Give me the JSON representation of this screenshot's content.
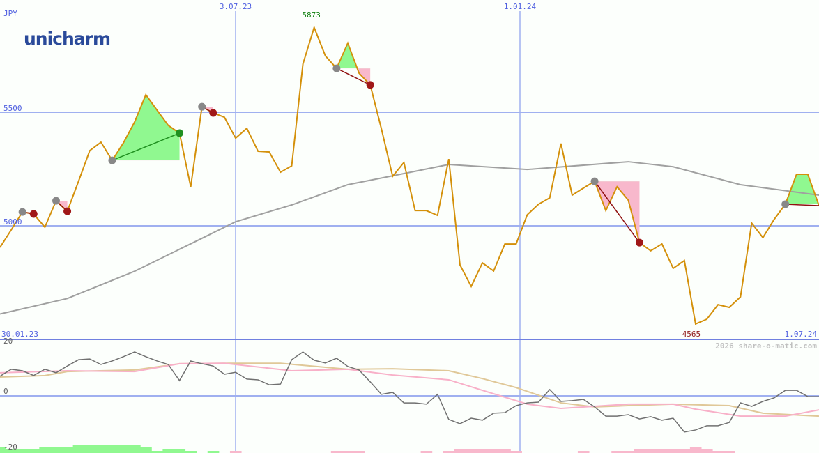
{
  "chart_data": {
    "type": "line",
    "currency": "JPY",
    "logo": "unicharm",
    "watermark": "2026 share-o-matic.com",
    "x_start": "30.01.23",
    "x_end": "1.07.24",
    "x_ticks": [
      "3.07.23",
      "1.01.24"
    ],
    "y_ticks": [
      5000,
      5500
    ],
    "ylim": [
      4520,
      5900
    ],
    "high_label": "5873",
    "low_label": "4565",
    "high_index": 28,
    "low_index": 62,
    "colors": {
      "price": "#d4900a",
      "ma": "#a0a0a0",
      "grid": "#a0b0f0",
      "axis_text": "#5060e0",
      "gain": "#90f890",
      "loss": "#f8b8cc",
      "high": "#108010",
      "low": "#901818"
    },
    "price": [
      4905,
      4982,
      5061,
      5052,
      4994,
      5110,
      5064,
      5196,
      5331,
      5368,
      5288,
      5365,
      5457,
      5577,
      5509,
      5442,
      5408,
      5172,
      5524,
      5497,
      5478,
      5386,
      5429,
      5328,
      5325,
      5236,
      5264,
      5712,
      5873,
      5748,
      5693,
      5804,
      5672,
      5620,
      5426,
      5218,
      5279,
      5067,
      5067,
      5046,
      5294,
      4828,
      4733,
      4837,
      4801,
      4920,
      4920,
      5049,
      5095,
      5123,
      5362,
      5135,
      5166,
      5196,
      5067,
      5172,
      5113,
      4926,
      4890,
      4920,
      4813,
      4847,
      4568,
      4589,
      4653,
      4641,
      4687,
      5012,
      4948,
      5028,
      5095,
      5227,
      5227,
      5089
    ],
    "moving_average": [
      [
        0,
        4612
      ],
      [
        6,
        4680
      ],
      [
        12,
        4800
      ],
      [
        18,
        4945
      ],
      [
        21,
        5018
      ],
      [
        26,
        5092
      ],
      [
        31,
        5181
      ],
      [
        36,
        5230
      ],
      [
        40,
        5270
      ],
      [
        47,
        5248
      ],
      [
        56,
        5282
      ],
      [
        60,
        5260
      ],
      [
        66,
        5181
      ],
      [
        73,
        5135
      ]
    ],
    "trades": [
      {
        "entry": 2,
        "exit": 3,
        "result": "loss"
      },
      {
        "entry": 5,
        "exit": 6,
        "result": "loss"
      },
      {
        "entry": 10,
        "exit": 16,
        "result": "gain"
      },
      {
        "entry": 18,
        "exit": 19,
        "result": "loss"
      },
      {
        "entry": 30,
        "exit": 33,
        "result": "loss"
      },
      {
        "entry": 53,
        "exit": 57,
        "result": "loss"
      },
      {
        "entry": 70,
        "exit": 73,
        "result": "open"
      }
    ],
    "indicator": {
      "y_ticks": [
        20,
        0,
        -20
      ],
      "ylim": [
        -22,
        26
      ],
      "oscillator": [
        7.8,
        10.6,
        10,
        8.1,
        10.6,
        9.2,
        11.9,
        14.4,
        14.7,
        12.5,
        13.9,
        15.6,
        17.5,
        15.6,
        13.9,
        12.5,
        6.1,
        13.9,
        12.8,
        11.9,
        8.6,
        9.4,
        6.7,
        6.4,
        4.4,
        4.7,
        14.4,
        17.5,
        14.2,
        13.1,
        15,
        11.7,
        10.3,
        5.6,
        0.6,
        1.4,
        -2.8,
        -2.8,
        -3.3,
        0.6,
        -9.4,
        -11.1,
        -8.9,
        -9.7,
        -6.9,
        -6.7,
        -3.9,
        -2.8,
        -2.5,
        2.5,
        -2.2,
        -1.9,
        -1.4,
        -4.4,
        -8.1,
        -8.1,
        -7.5,
        -9.2,
        -8.3,
        -9.7,
        -8.9,
        -14.4,
        -13.6,
        -11.9,
        -11.9,
        -10.6,
        -2.8,
        -4.2,
        -2.2,
        -0.8,
        2.2,
        2.2,
        -0.3,
        -0.3
      ],
      "signal_pink": [
        [
          0,
          9.2
        ],
        [
          6,
          10
        ],
        [
          12,
          9.7
        ],
        [
          16,
          12.8
        ],
        [
          20,
          13
        ],
        [
          26,
          10
        ],
        [
          31,
          10.6
        ],
        [
          35,
          8.3
        ],
        [
          40,
          6.4
        ],
        [
          43,
          2.2
        ],
        [
          47,
          -3.3
        ],
        [
          50,
          -5
        ],
        [
          56,
          -3.3
        ],
        [
          60,
          -3.3
        ],
        [
          62,
          -5.3
        ],
        [
          66,
          -8.1
        ],
        [
          70,
          -8.1
        ],
        [
          73,
          -5.6
        ]
      ],
      "signal_tan": [
        [
          0,
          7.5
        ],
        [
          4,
          8.1
        ],
        [
          6,
          9.7
        ],
        [
          12,
          10.3
        ],
        [
          16,
          12.8
        ],
        [
          20,
          13
        ],
        [
          25,
          13
        ],
        [
          31,
          10.6
        ],
        [
          35,
          10.8
        ],
        [
          40,
          10
        ],
        [
          43,
          6.9
        ],
        [
          46,
          3.3
        ],
        [
          50,
          -2.8
        ],
        [
          53,
          -4.4
        ],
        [
          56,
          -3.9
        ],
        [
          60,
          -3.3
        ],
        [
          65,
          -3.9
        ],
        [
          68,
          -6.9
        ],
        [
          73,
          -8.1
        ]
      ],
      "histogram": [
        3,
        2,
        2,
        2,
        3,
        3,
        3,
        4,
        4,
        4,
        4,
        4,
        4,
        3,
        1,
        2,
        2,
        1,
        0,
        1,
        0,
        -1,
        0,
        0,
        0,
        0,
        0,
        0,
        0,
        0,
        -1,
        -1,
        -1,
        0,
        0,
        0,
        0,
        0,
        -1,
        0,
        -1,
        -2,
        -2,
        -2,
        -2,
        -2,
        -1,
        0,
        0,
        0,
        0,
        0,
        -1,
        0,
        0,
        -1,
        -1,
        -2,
        -2,
        -2,
        -2,
        -2,
        -3,
        -2,
        -1,
        -1,
        0,
        0,
        0,
        0,
        0,
        0,
        0,
        0
      ]
    }
  }
}
